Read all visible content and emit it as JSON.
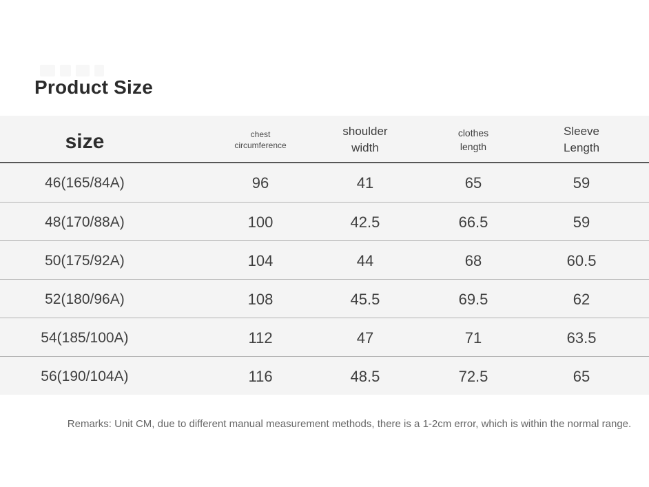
{
  "page": {
    "title": "Product Size",
    "remarks": "Remarks: Unit CM, due to different manual measurement methods, there is a 1-2cm error, which is within the normal range."
  },
  "colors": {
    "row_background": "#f4f4f4",
    "row_separator": "#b3b3b3",
    "header_rule": "#565656",
    "title_text": "#2b2b2b",
    "body_text": "#3f3f3f",
    "remarks_text": "#666666"
  },
  "table": {
    "headers": {
      "size": "size",
      "chest": [
        "chest",
        "circumference"
      ],
      "shoulder": [
        "shoulder",
        "width"
      ],
      "clothes": [
        "clothes",
        "length"
      ],
      "sleeve": [
        "Sleeve",
        "Length"
      ]
    },
    "rows": [
      [
        "46(165/84A)",
        "96",
        "41",
        "65",
        "59"
      ],
      [
        "48(170/88A)",
        "100",
        "42.5",
        "66.5",
        "59"
      ],
      [
        "50(175/92A)",
        "104",
        "44",
        "68",
        "60.5"
      ],
      [
        "52(180/96A)",
        "108",
        "45.5",
        "69.5",
        "62"
      ],
      [
        "54(185/100A)",
        "112",
        "47",
        "71",
        "63.5"
      ],
      [
        "56(190/104A)",
        "116",
        "48.5",
        "72.5",
        "65"
      ]
    ]
  },
  "chart_data": {
    "type": "table",
    "title": "Product Size",
    "columns": [
      "size",
      "chest circumference",
      "shoulder width",
      "clothes length",
      "Sleeve Length"
    ],
    "rows": [
      [
        "46(165/84A)",
        96,
        41,
        65,
        59
      ],
      [
        "48(170/88A)",
        100,
        42.5,
        66.5,
        59
      ],
      [
        "50(175/92A)",
        104,
        44,
        68,
        60.5
      ],
      [
        "52(180/96A)",
        108,
        45.5,
        69.5,
        62
      ],
      [
        "54(185/100A)",
        112,
        47,
        71,
        63.5
      ],
      [
        "56(190/104A)",
        116,
        48.5,
        72.5,
        65
      ]
    ],
    "unit": "cm",
    "note": "Remarks: Unit CM, due to different manual measurement methods, there is a 1-2cm error, which is within the normal range."
  }
}
